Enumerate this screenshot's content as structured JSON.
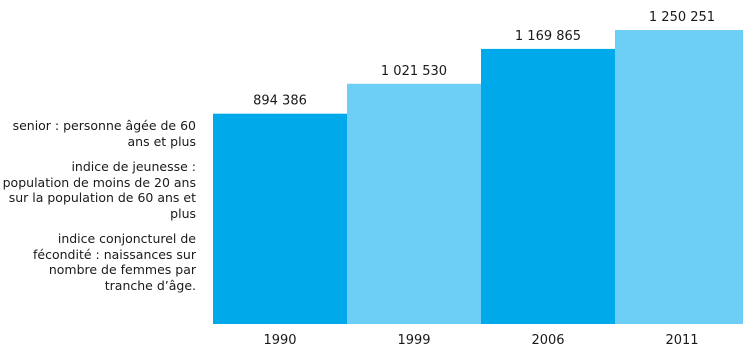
{
  "chart_data": {
    "type": "bar",
    "title": "",
    "xlabel": "",
    "ylabel": "",
    "categories": [
      "1990",
      "1999",
      "2006",
      "2011"
    ],
    "values": [
      894386,
      1021530,
      1169865,
      1250251
    ],
    "value_labels": [
      "894 386",
      "1 021 530",
      "1 169 865",
      "1 250 251"
    ],
    "ylim": [
      0,
      1250251
    ],
    "grid": false,
    "legend": "none",
    "colors": [
      "#00aaea",
      "#6ecff6",
      "#00aaea",
      "#6ecff6"
    ]
  },
  "notes": [
    "senior : personne âgée de 60 ans et plus",
    "indice de jeunesse : population de moins de 20 ans sur la population de 60 ans et plus",
    "indice conjoncturel de fécondité : naissances sur nombre de femmes par tranche d’âge."
  ]
}
